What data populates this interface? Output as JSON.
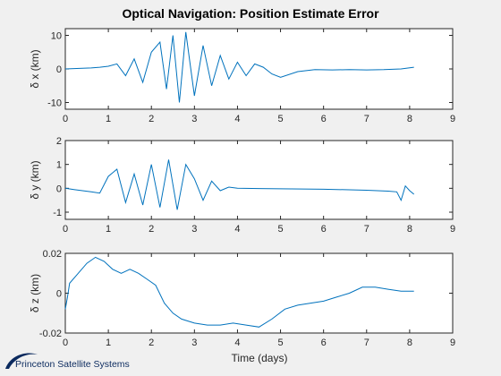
{
  "chart_data": [
    {
      "type": "line",
      "title": "Optical Navigation: Position Estimate Error",
      "xlabel": "",
      "ylabel": "δ x (km)",
      "xlim": [
        0,
        9
      ],
      "ylim": [
        -12,
        12
      ],
      "xticks": [
        "0",
        "1",
        "2",
        "3",
        "4",
        "5",
        "6",
        "7",
        "8",
        "9"
      ],
      "yticks": [
        "10",
        "0",
        "-10"
      ],
      "ytick_values": [
        10,
        0,
        -10
      ],
      "x": [
        0,
        0.2,
        0.4,
        0.6,
        0.8,
        1.0,
        1.2,
        1.4,
        1.6,
        1.8,
        2.0,
        2.2,
        2.35,
        2.5,
        2.65,
        2.8,
        3.0,
        3.2,
        3.4,
        3.6,
        3.8,
        4.0,
        4.2,
        4.4,
        4.6,
        4.8,
        5.0,
        5.4,
        5.8,
        6.2,
        6.6,
        7.0,
        7.4,
        7.8,
        8.1
      ],
      "series": [
        {
          "color": "#0072bd",
          "values": [
            0,
            0.1,
            0.2,
            0.3,
            0.5,
            0.8,
            1.5,
            -2,
            3,
            -4,
            5,
            8,
            -6,
            10,
            -10,
            11,
            -8,
            7,
            -5,
            4,
            -3,
            2,
            -2,
            1.5,
            0.5,
            -1.5,
            -2.5,
            -0.8,
            -0.2,
            -0.3,
            -0.2,
            -0.3,
            -0.2,
            0,
            0.5
          ]
        }
      ]
    },
    {
      "type": "line",
      "title": "",
      "xlabel": "",
      "ylabel": "δ y (km)",
      "xlim": [
        0,
        9
      ],
      "ylim": [
        -1.3,
        2
      ],
      "xticks": [
        "0",
        "1",
        "2",
        "3",
        "4",
        "5",
        "6",
        "7",
        "8",
        "9"
      ],
      "yticks": [
        "2",
        "1",
        "0",
        "-1"
      ],
      "ytick_values": [
        2,
        1,
        0,
        -1
      ],
      "x": [
        0,
        0.2,
        0.4,
        0.6,
        0.8,
        1.0,
        1.2,
        1.4,
        1.6,
        1.8,
        2.0,
        2.2,
        2.4,
        2.6,
        2.8,
        3.0,
        3.2,
        3.4,
        3.6,
        3.8,
        4.0,
        4.5,
        5.0,
        5.5,
        6.0,
        6.5,
        7.0,
        7.5,
        7.7,
        7.8,
        7.9,
        8.0,
        8.1
      ],
      "series": [
        {
          "color": "#0072bd",
          "values": [
            0,
            -0.05,
            -0.1,
            -0.15,
            -0.2,
            0.5,
            0.8,
            -0.6,
            0.6,
            -0.7,
            1.0,
            -0.8,
            1.2,
            -0.9,
            1.0,
            0.4,
            -0.5,
            0.3,
            -0.1,
            0.05,
            0,
            -0.01,
            -0.02,
            -0.03,
            -0.04,
            -0.06,
            -0.08,
            -0.12,
            -0.15,
            -0.5,
            0.1,
            -0.1,
            -0.25
          ]
        }
      ]
    },
    {
      "type": "line",
      "title": "",
      "xlabel": "Time (days)",
      "ylabel": "δ z (km)",
      "xlim": [
        0,
        9
      ],
      "ylim": [
        -0.02,
        0.02
      ],
      "xticks": [
        "0",
        "1",
        "2",
        "3",
        "4",
        "5",
        "6",
        "7",
        "8",
        "9"
      ],
      "yticks": [
        "0.02",
        "0",
        "-0.02"
      ],
      "ytick_values": [
        0.02,
        0,
        -0.02
      ],
      "x": [
        0,
        0.05,
        0.1,
        0.3,
        0.5,
        0.7,
        0.9,
        1.1,
        1.3,
        1.5,
        1.7,
        1.9,
        2.1,
        2.3,
        2.5,
        2.7,
        3.0,
        3.3,
        3.6,
        3.9,
        4.2,
        4.5,
        4.8,
        5.1,
        5.4,
        5.7,
        6.0,
        6.3,
        6.6,
        6.9,
        7.2,
        7.5,
        7.8,
        8.1
      ],
      "series": [
        {
          "color": "#0072bd",
          "values": [
            -0.008,
            -0.002,
            0.005,
            0.01,
            0.015,
            0.018,
            0.016,
            0.012,
            0.01,
            0.012,
            0.01,
            0.007,
            0.004,
            -0.005,
            -0.01,
            -0.013,
            -0.015,
            -0.016,
            -0.016,
            -0.015,
            -0.016,
            -0.017,
            -0.013,
            -0.008,
            -0.006,
            -0.005,
            -0.004,
            -0.002,
            0,
            0.003,
            0.003,
            0.002,
            0.001,
            0.001
          ]
        }
      ]
    }
  ],
  "logo": {
    "text": "Princeton Satellite Systems",
    "color": "#0b2a5e"
  }
}
